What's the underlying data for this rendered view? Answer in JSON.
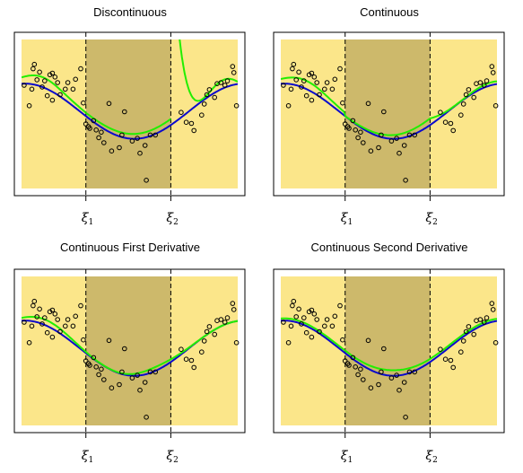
{
  "colors": {
    "outer_region": "#FBE68A",
    "middle_region": "#CDB96B",
    "true_curve": "#0A0ACC",
    "fit_curve": "#22EE00",
    "points": "#000000",
    "knot_line": "#000000"
  },
  "chart_data": [
    {
      "type": "scatter",
      "title": "Discontinuous",
      "constraint": "discontinuous",
      "knots": [
        {
          "label": "ξ",
          "sub": "1",
          "x": 0.33
        },
        {
          "label": "ξ",
          "sub": "2",
          "x": 0.66
        }
      ],
      "xlim": [
        0.08,
        0.92
      ],
      "ylim": [
        -1.45,
        1.25
      ],
      "series": [
        {
          "role": "true function",
          "color": "#0A0ACC"
        },
        {
          "role": "piecewise cubic fit",
          "color": "#22EE00"
        }
      ]
    },
    {
      "type": "scatter",
      "title": "Continuous",
      "constraint": "continuous",
      "knots": [
        {
          "label": "ξ",
          "sub": "1",
          "x": 0.33
        },
        {
          "label": "ξ",
          "sub": "2",
          "x": 0.66
        }
      ],
      "xlim": [
        0.08,
        0.92
      ],
      "ylim": [
        -1.45,
        1.25
      ],
      "series": [
        {
          "role": "true function",
          "color": "#0A0ACC"
        },
        {
          "role": "piecewise cubic fit",
          "color": "#22EE00"
        }
      ]
    },
    {
      "type": "scatter",
      "title": "Continuous First Derivative",
      "constraint": "first-derivative",
      "knots": [
        {
          "label": "ξ",
          "sub": "1",
          "x": 0.33
        },
        {
          "label": "ξ",
          "sub": "2",
          "x": 0.66
        }
      ],
      "xlim": [
        0.08,
        0.92
      ],
      "ylim": [
        -1.45,
        1.25
      ],
      "series": [
        {
          "role": "true function",
          "color": "#0A0ACC"
        },
        {
          "role": "piecewise cubic fit",
          "color": "#22EE00"
        }
      ]
    },
    {
      "type": "scatter",
      "title": "Continuous Second Derivative",
      "constraint": "second-derivative",
      "knots": [
        {
          "label": "ξ",
          "sub": "1",
          "x": 0.33
        },
        {
          "label": "ξ",
          "sub": "2",
          "x": 0.66
        }
      ],
      "xlim": [
        0.08,
        0.92
      ],
      "ylim": [
        -1.45,
        1.25
      ],
      "series": [
        {
          "role": "true function",
          "color": "#0A0ACC"
        },
        {
          "role": "piecewise cubic fit",
          "color": "#22EE00"
        }
      ]
    }
  ],
  "scatter_points": [
    [
      0.09,
      0.42
    ],
    [
      0.11,
      0.05
    ],
    [
      0.12,
      0.35
    ],
    [
      0.125,
      0.72
    ],
    [
      0.13,
      0.8
    ],
    [
      0.14,
      0.52
    ],
    [
      0.15,
      0.66
    ],
    [
      0.16,
      0.39
    ],
    [
      0.17,
      0.5
    ],
    [
      0.18,
      0.23
    ],
    [
      0.19,
      0.61
    ],
    [
      0.2,
      0.64
    ],
    [
      0.2,
      0.15
    ],
    [
      0.21,
      0.57
    ],
    [
      0.22,
      0.47
    ],
    [
      0.23,
      0.25
    ],
    [
      0.25,
      0.35
    ],
    [
      0.26,
      0.47
    ],
    [
      0.28,
      0.35
    ],
    [
      0.29,
      0.53
    ],
    [
      0.31,
      0.72
    ],
    [
      0.32,
      0.1
    ],
    [
      0.33,
      -0.28
    ],
    [
      0.34,
      -0.33
    ],
    [
      0.345,
      -0.36
    ],
    [
      0.36,
      -0.22
    ],
    [
      0.37,
      -0.39
    ],
    [
      0.38,
      -0.53
    ],
    [
      0.39,
      -0.43
    ],
    [
      0.4,
      -0.62
    ],
    [
      0.42,
      0.09
    ],
    [
      0.43,
      -0.77
    ],
    [
      0.46,
      -0.71
    ],
    [
      0.47,
      -0.48
    ],
    [
      0.48,
      -0.06
    ],
    [
      0.51,
      -0.59
    ],
    [
      0.53,
      -0.54
    ],
    [
      0.54,
      -0.81
    ],
    [
      0.56,
      -0.67
    ],
    [
      0.565,
      -1.3
    ],
    [
      0.58,
      -0.48
    ],
    [
      0.6,
      -0.48
    ],
    [
      0.7,
      -0.07
    ],
    [
      0.72,
      -0.25
    ],
    [
      0.74,
      -0.27
    ],
    [
      0.75,
      -0.4
    ],
    [
      0.78,
      -0.12
    ],
    [
      0.79,
      0.08
    ],
    [
      0.8,
      0.25
    ],
    [
      0.81,
      0.34
    ],
    [
      0.83,
      0.2
    ],
    [
      0.84,
      0.45
    ],
    [
      0.855,
      0.47
    ],
    [
      0.87,
      0.42
    ],
    [
      0.88,
      0.5
    ],
    [
      0.9,
      0.76
    ],
    [
      0.905,
      0.65
    ],
    [
      0.915,
      0.05
    ]
  ]
}
